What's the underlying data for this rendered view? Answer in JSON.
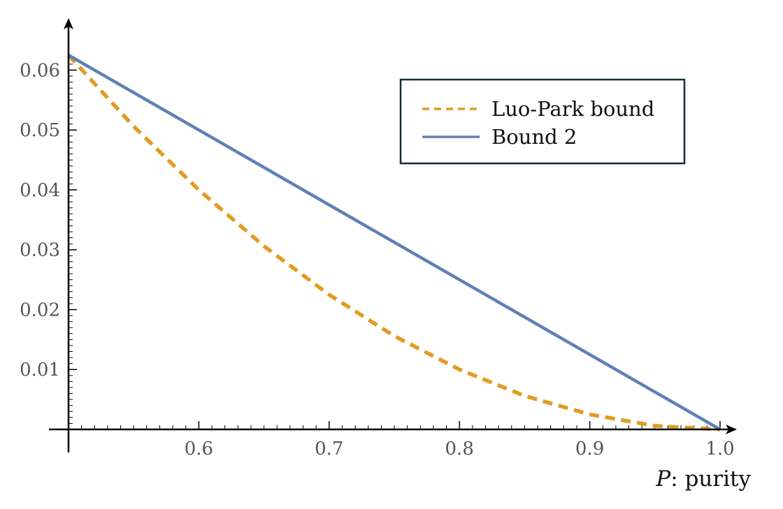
{
  "chart_data": {
    "type": "line",
    "title": "",
    "xlabel_var": "P",
    "xlabel_rest": ": purity",
    "ylabel": "",
    "xlim": [
      0.5,
      1.0
    ],
    "ylim": [
      0,
      0.0625
    ],
    "x_ticks": [
      "0.6",
      "0.7",
      "0.8",
      "0.9",
      "1.0"
    ],
    "y_ticks": [
      "0.01",
      "0.02",
      "0.03",
      "0.04",
      "0.05",
      "0.06"
    ],
    "legend_position": "top-right",
    "series": [
      {
        "name": "Luo-Park bound",
        "style": "dashed",
        "color": "#e19c24",
        "x": [
          0.5,
          0.55,
          0.6,
          0.65,
          0.7,
          0.75,
          0.8,
          0.85,
          0.9,
          0.95,
          1.0
        ],
        "y": [
          0.0625,
          0.0506,
          0.04,
          0.0306,
          0.0225,
          0.0156,
          0.01,
          0.0056,
          0.0025,
          0.0006,
          0.0
        ]
      },
      {
        "name": "Bound 2",
        "style": "solid",
        "color": "#5e81b5",
        "x": [
          0.5,
          0.6,
          0.7,
          0.8,
          0.9,
          1.0
        ],
        "y": [
          0.0625,
          0.05,
          0.0375,
          0.025,
          0.0125,
          0.0
        ]
      }
    ]
  }
}
